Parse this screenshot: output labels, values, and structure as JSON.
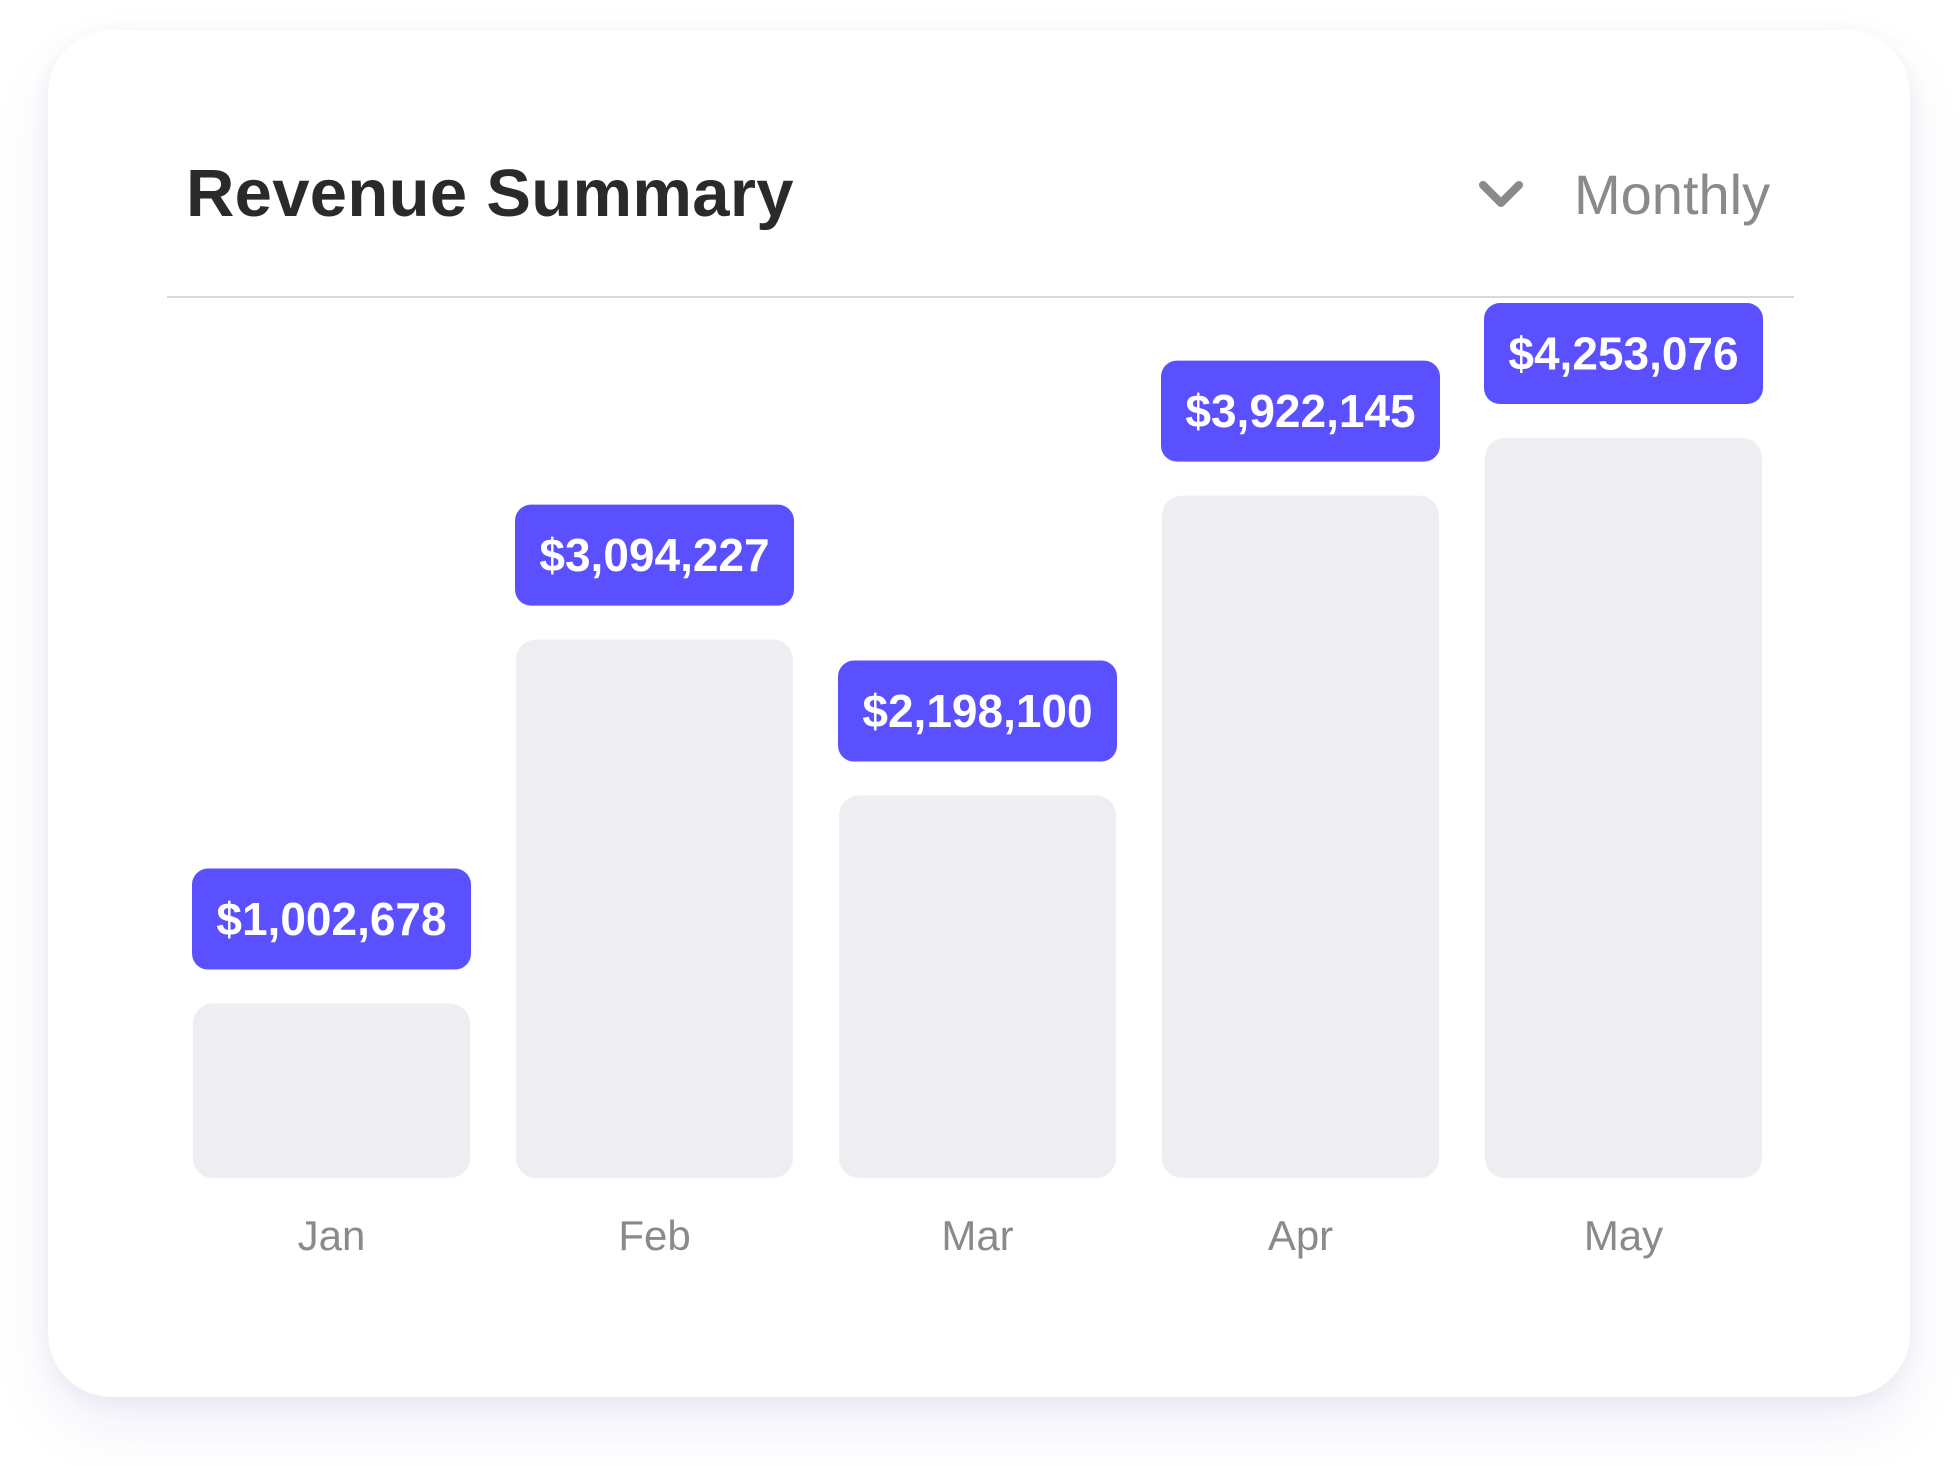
{
  "card": {
    "title": "Revenue Summary",
    "period": "Monthly"
  },
  "colors": {
    "accent": "#5A50FF",
    "bar": "#EDEDF2",
    "title": "#2A2A2A",
    "muted": "#8A8A8A"
  },
  "chart_data": {
    "type": "bar",
    "title": "Revenue Summary",
    "categories": [
      "Jan",
      "Feb",
      "Mar",
      "Apr",
      "May"
    ],
    "values": [
      1002678,
      3094227,
      2198100,
      3922145,
      4253076
    ],
    "value_labels": [
      "$1,002,678",
      "$3,094,227",
      "$2,198,100",
      "$3,922,145",
      "$4,253,076"
    ],
    "xlabel": "",
    "ylabel": "",
    "grid": false,
    "legend": "none"
  }
}
